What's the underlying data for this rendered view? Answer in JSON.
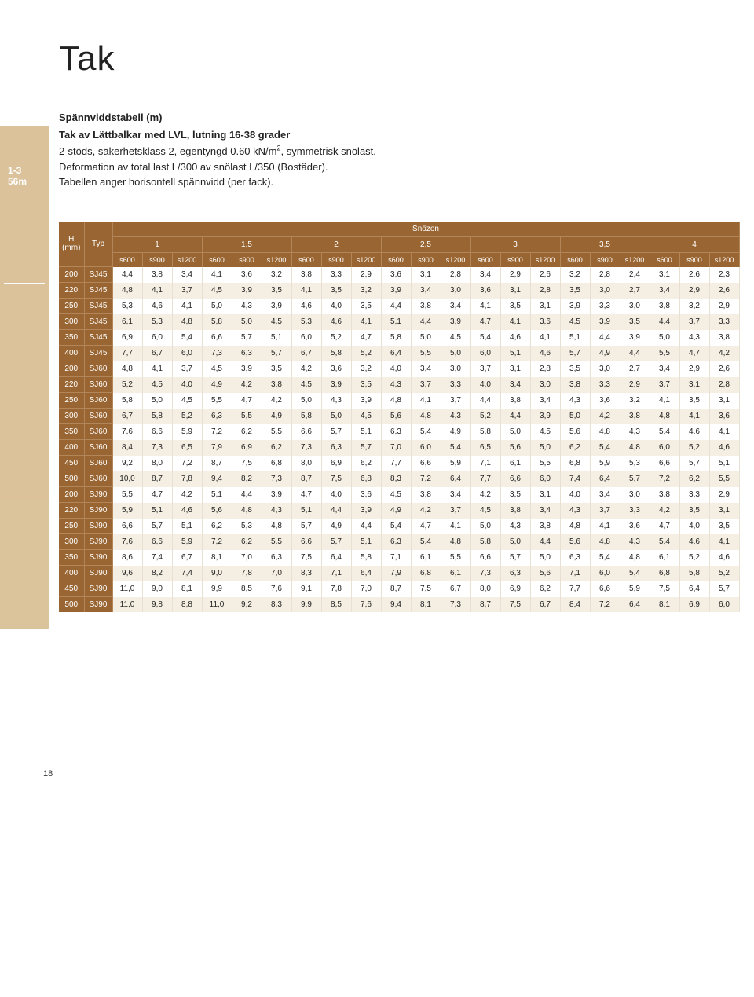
{
  "title": "Tak",
  "intro": {
    "l1": "Spännviddstabell (m)",
    "l2": "Tak av Lättbalkar med LVL, lutning 16-38 grader",
    "l3_a": "2-stöds, säkerhetsklass 2, egentyngd 0.60 kN/m",
    "l3_b": ", symmetrisk snölast.",
    "l4": "Deformation av total last L/300 av snölast L/350 (Bostäder).",
    "l5": "Tabellen anger horisontell spännvidd (per fack)."
  },
  "table": {
    "h_label": "H",
    "h_unit": "(mm)",
    "typ_label": "Typ",
    "snozon": "Snözon",
    "zones": [
      "1",
      "1,5",
      "2",
      "2,5",
      "3",
      "3,5",
      "4"
    ],
    "spacings": [
      "s600",
      "s900",
      "s1200"
    ],
    "rows": [
      {
        "h": "200",
        "typ": "SJ45",
        "v": [
          "4,4",
          "3,8",
          "3,4",
          "4,1",
          "3,6",
          "3,2",
          "3,8",
          "3,3",
          "2,9",
          "3,6",
          "3,1",
          "2,8",
          "3,4",
          "2,9",
          "2,6",
          "3,2",
          "2,8",
          "2,4",
          "3,1",
          "2,6",
          "2,3"
        ]
      },
      {
        "h": "220",
        "typ": "SJ45",
        "v": [
          "4,8",
          "4,1",
          "3,7",
          "4,5",
          "3,9",
          "3,5",
          "4,1",
          "3,5",
          "3,2",
          "3,9",
          "3,4",
          "3,0",
          "3,6",
          "3,1",
          "2,8",
          "3,5",
          "3,0",
          "2,7",
          "3,4",
          "2,9",
          "2,6"
        ]
      },
      {
        "h": "250",
        "typ": "SJ45",
        "v": [
          "5,3",
          "4,6",
          "4,1",
          "5,0",
          "4,3",
          "3,9",
          "4,6",
          "4,0",
          "3,5",
          "4,4",
          "3,8",
          "3,4",
          "4,1",
          "3,5",
          "3,1",
          "3,9",
          "3,3",
          "3,0",
          "3,8",
          "3,2",
          "2,9"
        ]
      },
      {
        "h": "300",
        "typ": "SJ45",
        "v": [
          "6,1",
          "5,3",
          "4,8",
          "5,8",
          "5,0",
          "4,5",
          "5,3",
          "4,6",
          "4,1",
          "5,1",
          "4,4",
          "3,9",
          "4,7",
          "4,1",
          "3,6",
          "4,5",
          "3,9",
          "3,5",
          "4,4",
          "3,7",
          "3,3"
        ]
      },
      {
        "h": "350",
        "typ": "SJ45",
        "v": [
          "6,9",
          "6,0",
          "5,4",
          "6,6",
          "5,7",
          "5,1",
          "6,0",
          "5,2",
          "4,7",
          "5,8",
          "5,0",
          "4,5",
          "5,4",
          "4,6",
          "4,1",
          "5,1",
          "4,4",
          "3,9",
          "5,0",
          "4,3",
          "3,8"
        ]
      },
      {
        "h": "400",
        "typ": "SJ45",
        "v": [
          "7,7",
          "6,7",
          "6,0",
          "7,3",
          "6,3",
          "5,7",
          "6,7",
          "5,8",
          "5,2",
          "6,4",
          "5,5",
          "5,0",
          "6,0",
          "5,1",
          "4,6",
          "5,7",
          "4,9",
          "4,4",
          "5,5",
          "4,7",
          "4,2"
        ]
      },
      {
        "h": "200",
        "typ": "SJ60",
        "v": [
          "4,8",
          "4,1",
          "3,7",
          "4,5",
          "3,9",
          "3,5",
          "4,2",
          "3,6",
          "3,2",
          "4,0",
          "3,4",
          "3,0",
          "3,7",
          "3,1",
          "2,8",
          "3,5",
          "3,0",
          "2,7",
          "3,4",
          "2,9",
          "2,6"
        ]
      },
      {
        "h": "220",
        "typ": "SJ60",
        "v": [
          "5,2",
          "4,5",
          "4,0",
          "4,9",
          "4,2",
          "3,8",
          "4,5",
          "3,9",
          "3,5",
          "4,3",
          "3,7",
          "3,3",
          "4,0",
          "3,4",
          "3,0",
          "3,8",
          "3,3",
          "2,9",
          "3,7",
          "3,1",
          "2,8"
        ]
      },
      {
        "h": "250",
        "typ": "SJ60",
        "v": [
          "5,8",
          "5,0",
          "4,5",
          "5,5",
          "4,7",
          "4,2",
          "5,0",
          "4,3",
          "3,9",
          "4,8",
          "4,1",
          "3,7",
          "4,4",
          "3,8",
          "3,4",
          "4,3",
          "3,6",
          "3,2",
          "4,1",
          "3,5",
          "3,1"
        ]
      },
      {
        "h": "300",
        "typ": "SJ60",
        "v": [
          "6,7",
          "5,8",
          "5,2",
          "6,3",
          "5,5",
          "4,9",
          "5,8",
          "5,0",
          "4,5",
          "5,6",
          "4,8",
          "4,3",
          "5,2",
          "4,4",
          "3,9",
          "5,0",
          "4,2",
          "3,8",
          "4,8",
          "4,1",
          "3,6"
        ]
      },
      {
        "h": "350",
        "typ": "SJ60",
        "v": [
          "7,6",
          "6,6",
          "5,9",
          "7,2",
          "6,2",
          "5,5",
          "6,6",
          "5,7",
          "5,1",
          "6,3",
          "5,4",
          "4,9",
          "5,8",
          "5,0",
          "4,5",
          "5,6",
          "4,8",
          "4,3",
          "5,4",
          "4,6",
          "4,1"
        ]
      },
      {
        "h": "400",
        "typ": "SJ60",
        "v": [
          "8,4",
          "7,3",
          "6,5",
          "7,9",
          "6,9",
          "6,2",
          "7,3",
          "6,3",
          "5,7",
          "7,0",
          "6,0",
          "5,4",
          "6,5",
          "5,6",
          "5,0",
          "6,2",
          "5,4",
          "4,8",
          "6,0",
          "5,2",
          "4,6"
        ]
      },
      {
        "h": "450",
        "typ": "SJ60",
        "v": [
          "9,2",
          "8,0",
          "7,2",
          "8,7",
          "7,5",
          "6,8",
          "8,0",
          "6,9",
          "6,2",
          "7,7",
          "6,6",
          "5,9",
          "7,1",
          "6,1",
          "5,5",
          "6,8",
          "5,9",
          "5,3",
          "6,6",
          "5,7",
          "5,1"
        ]
      },
      {
        "h": "500",
        "typ": "SJ60",
        "v": [
          "10,0",
          "8,7",
          "7,8",
          "9,4",
          "8,2",
          "7,3",
          "8,7",
          "7,5",
          "6,8",
          "8,3",
          "7,2",
          "6,4",
          "7,7",
          "6,6",
          "6,0",
          "7,4",
          "6,4",
          "5,7",
          "7,2",
          "6,2",
          "5,5"
        ]
      },
      {
        "h": "200",
        "typ": "SJ90",
        "v": [
          "5,5",
          "4,7",
          "4,2",
          "5,1",
          "4,4",
          "3,9",
          "4,7",
          "4,0",
          "3,6",
          "4,5",
          "3,8",
          "3,4",
          "4,2",
          "3,5",
          "3,1",
          "4,0",
          "3,4",
          "3,0",
          "3,8",
          "3,3",
          "2,9"
        ]
      },
      {
        "h": "220",
        "typ": "SJ90",
        "v": [
          "5,9",
          "5,1",
          "4,6",
          "5,6",
          "4,8",
          "4,3",
          "5,1",
          "4,4",
          "3,9",
          "4,9",
          "4,2",
          "3,7",
          "4,5",
          "3,8",
          "3,4",
          "4,3",
          "3,7",
          "3,3",
          "4,2",
          "3,5",
          "3,1"
        ]
      },
      {
        "h": "250",
        "typ": "SJ90",
        "v": [
          "6,6",
          "5,7",
          "5,1",
          "6,2",
          "5,3",
          "4,8",
          "5,7",
          "4,9",
          "4,4",
          "5,4",
          "4,7",
          "4,1",
          "5,0",
          "4,3",
          "3,8",
          "4,8",
          "4,1",
          "3,6",
          "4,7",
          "4,0",
          "3,5"
        ]
      },
      {
        "h": "300",
        "typ": "SJ90",
        "v": [
          "7,6",
          "6,6",
          "5,9",
          "7,2",
          "6,2",
          "5,5",
          "6,6",
          "5,7",
          "5,1",
          "6,3",
          "5,4",
          "4,8",
          "5,8",
          "5,0",
          "4,4",
          "5,6",
          "4,8",
          "4,3",
          "5,4",
          "4,6",
          "4,1"
        ]
      },
      {
        "h": "350",
        "typ": "SJ90",
        "v": [
          "8,6",
          "7,4",
          "6,7",
          "8,1",
          "7,0",
          "6,3",
          "7,5",
          "6,4",
          "5,8",
          "7,1",
          "6,1",
          "5,5",
          "6,6",
          "5,7",
          "5,0",
          "6,3",
          "5,4",
          "4,8",
          "6,1",
          "5,2",
          "4,6"
        ]
      },
      {
        "h": "400",
        "typ": "SJ90",
        "v": [
          "9,6",
          "8,2",
          "7,4",
          "9,0",
          "7,8",
          "7,0",
          "8,3",
          "7,1",
          "6,4",
          "7,9",
          "6,8",
          "6,1",
          "7,3",
          "6,3",
          "5,6",
          "7,1",
          "6,0",
          "5,4",
          "6,8",
          "5,8",
          "5,2"
        ]
      },
      {
        "h": "450",
        "typ": "SJ90",
        "v": [
          "11,0",
          "9,0",
          "8,1",
          "9,9",
          "8,5",
          "7,6",
          "9,1",
          "7,8",
          "7,0",
          "8,7",
          "7,5",
          "6,7",
          "8,0",
          "6,9",
          "6,2",
          "7,7",
          "6,6",
          "5,9",
          "7,5",
          "6,4",
          "5,7"
        ]
      },
      {
        "h": "500",
        "typ": "SJ90",
        "v": [
          "11,0",
          "9,8",
          "8,8",
          "11,0",
          "9,2",
          "8,3",
          "9,9",
          "8,5",
          "7,6",
          "9,4",
          "8,1",
          "7,3",
          "8,7",
          "7,5",
          "6,7",
          "8,4",
          "7,2",
          "6,4",
          "8,1",
          "6,9",
          "6,0"
        ]
      }
    ]
  },
  "pagenum": "18"
}
